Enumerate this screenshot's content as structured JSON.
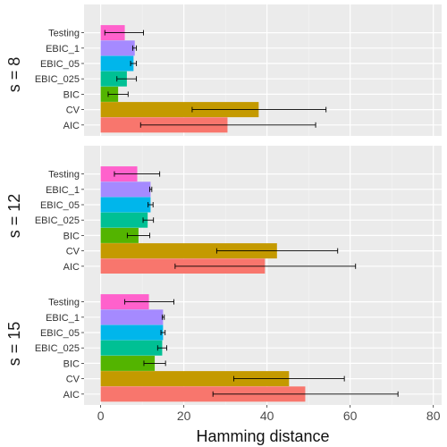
{
  "chart_data": {
    "type": "bar",
    "orientation": "horizontal",
    "xlabel": "Hamming distance",
    "ylabel": "",
    "xlim": [
      -4,
      82
    ],
    "x_ticks": [
      0,
      20,
      40,
      60,
      80
    ],
    "grid": true,
    "categories": [
      "Testing",
      "EBIC_1",
      "EBIC_05",
      "EBIC_025",
      "BIC",
      "CV",
      "AIC"
    ],
    "colors": {
      "Testing": "#FF61CC",
      "EBIC_1": "#A58AFF",
      "EBIC_05": "#00B6EB",
      "EBIC_025": "#00C094",
      "BIC": "#53B400",
      "CV": "#C49A00",
      "AIC": "#F8766D"
    },
    "panels": [
      {
        "label": "s = 8",
        "values": [
          5.8,
          8.2,
          7.9,
          6.3,
          4.2,
          38.0,
          30.5
        ],
        "error_low": [
          1.0,
          7.7,
          7.2,
          3.9,
          1.8,
          22.0,
          9.6
        ],
        "error_high": [
          10.3,
          8.6,
          8.6,
          8.6,
          6.6,
          54.2,
          51.7
        ]
      },
      {
        "label": "s = 12",
        "values": [
          8.8,
          12.0,
          12.0,
          11.3,
          9.1,
          42.4,
          39.5
        ],
        "error_low": [
          3.3,
          11.8,
          11.4,
          10.2,
          6.4,
          27.9,
          17.9
        ],
        "error_high": [
          14.2,
          12.3,
          12.6,
          12.7,
          11.8,
          57.0,
          61.3
        ]
      },
      {
        "label": "s = 15",
        "values": [
          11.6,
          15.0,
          15.0,
          14.8,
          13.0,
          45.3,
          49.2
        ],
        "error_low": [
          5.8,
          14.8,
          14.5,
          13.7,
          10.4,
          32.0,
          27.0
        ],
        "error_high": [
          17.6,
          15.3,
          15.5,
          15.9,
          15.6,
          58.6,
          71.5
        ]
      }
    ]
  }
}
